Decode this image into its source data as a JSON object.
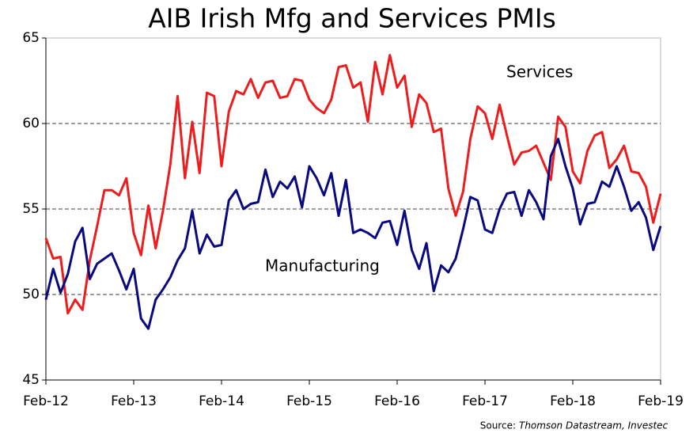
{
  "chart_data": {
    "type": "line",
    "title": "AIB Irish Mfg and Services PMIs",
    "categories": [
      "Feb-12",
      null,
      null,
      null,
      null,
      null,
      null,
      null,
      null,
      null,
      null,
      null,
      "Feb-13",
      null,
      null,
      null,
      null,
      null,
      null,
      null,
      null,
      null,
      null,
      null,
      "Feb-14",
      null,
      null,
      null,
      null,
      null,
      null,
      null,
      null,
      null,
      null,
      null,
      "Feb-15",
      null,
      null,
      null,
      null,
      null,
      null,
      null,
      null,
      null,
      null,
      null,
      "Feb-16",
      null,
      null,
      null,
      null,
      null,
      null,
      null,
      null,
      null,
      null,
      null,
      "Feb-17",
      null,
      null,
      null,
      null,
      null,
      null,
      null,
      null,
      null,
      null,
      null,
      "Feb-18",
      null,
      null,
      null,
      null,
      null,
      null,
      null,
      null,
      null,
      null,
      null,
      "Feb-19"
    ],
    "series": [
      {
        "name": "Services",
        "color": "#ee1c1c",
        "values": [
          53.3,
          52.1,
          52.2,
          48.9,
          49.7,
          49.1,
          52.0,
          54.0,
          56.1,
          56.1,
          55.8,
          56.8,
          53.6,
          52.3,
          55.2,
          52.7,
          54.9,
          57.6,
          61.6,
          56.8,
          60.1,
          57.1,
          61.8,
          61.6,
          57.5,
          60.7,
          61.9,
          61.7,
          62.6,
          61.5,
          62.4,
          62.5,
          61.5,
          61.6,
          62.6,
          62.5,
          61.4,
          60.9,
          60.6,
          61.4,
          63.3,
          63.4,
          62.1,
          62.4,
          60.1,
          63.6,
          61.7,
          64.0,
          62.1,
          62.8,
          59.8,
          61.7,
          61.2,
          59.5,
          59.7,
          56.2,
          54.6,
          56.0,
          59.1,
          61.0,
          60.6,
          59.1,
          61.1,
          59.3,
          57.6,
          58.3,
          58.4,
          58.7,
          57.7,
          56.7,
          60.4,
          59.8,
          57.2,
          56.5,
          58.4,
          59.3,
          59.5,
          57.4,
          57.9,
          58.7,
          57.2,
          57.1,
          56.3,
          54.2,
          55.9
        ]
      },
      {
        "name": "Manufacturing",
        "color": "#0a0a80",
        "values": [
          49.7,
          51.5,
          50.1,
          51.2,
          53.1,
          53.9,
          50.9,
          51.8,
          52.1,
          52.4,
          51.4,
          50.3,
          51.5,
          48.6,
          48.0,
          49.7,
          50.3,
          51.0,
          52.0,
          52.7,
          54.9,
          52.4,
          53.5,
          52.8,
          52.9,
          55.5,
          56.1,
          55.0,
          55.3,
          55.4,
          57.3,
          55.7,
          56.6,
          56.2,
          56.9,
          55.1,
          57.5,
          56.8,
          55.8,
          57.1,
          54.6,
          56.7,
          53.6,
          53.8,
          53.6,
          53.3,
          54.2,
          54.3,
          52.9,
          54.9,
          52.6,
          51.5,
          53.0,
          50.2,
          51.7,
          51.3,
          52.1,
          53.8,
          55.7,
          55.5,
          53.8,
          53.6,
          55.0,
          55.9,
          56.0,
          54.6,
          56.1,
          55.4,
          54.4,
          58.1,
          59.1,
          57.5,
          56.2,
          54.1,
          55.3,
          55.4,
          56.6,
          56.3,
          57.5,
          56.3,
          54.9,
          55.4,
          54.5,
          52.6,
          54.0
        ]
      }
    ],
    "ylim": [
      45,
      65
    ],
    "yticks": [
      45,
      50,
      55,
      60,
      65
    ],
    "grid": true,
    "source_label": "Source:",
    "source": "Thomson Datastream, Investec"
  }
}
